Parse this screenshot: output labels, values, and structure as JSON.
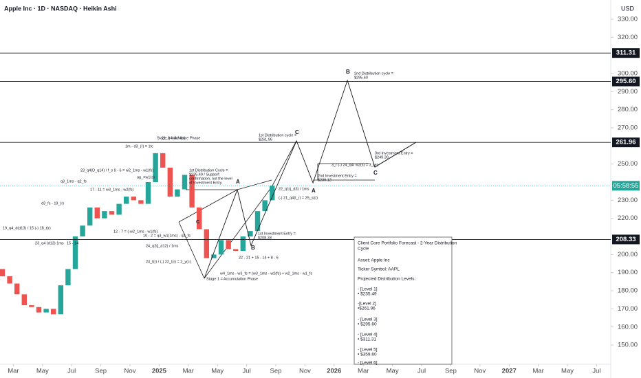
{
  "chart_data": {
    "type": "candlestick",
    "title": "Apple Inc · 1D · NASDAQ · Heikin Ashi",
    "currency": "USD",
    "colors": {
      "up": "#26a69a",
      "down": "#ef5350",
      "projection": "#1a1a1a",
      "level": "#1a1a1a"
    },
    "xlim": [
      1.085,
      42.97
    ],
    "ylim": [
      139.4,
      340.6
    ],
    "xticks": [
      {
        "value": 2,
        "label": "Mar"
      },
      {
        "value": 4,
        "label": "May"
      },
      {
        "value": 6,
        "label": "Jul"
      },
      {
        "value": 8,
        "label": "Sep"
      },
      {
        "value": 10,
        "label": "Nov"
      },
      {
        "value": 12,
        "label": "2025"
      },
      {
        "value": 14,
        "label": "Mar"
      },
      {
        "value": 16,
        "label": "May"
      },
      {
        "value": 18,
        "label": "Jul"
      },
      {
        "value": 20,
        "label": "Sep"
      },
      {
        "value": 22,
        "label": "Nov"
      },
      {
        "value": 24,
        "label": "2026"
      },
      {
        "value": 26,
        "label": "Mar"
      },
      {
        "value": 28,
        "label": "May"
      },
      {
        "value": 30,
        "label": "Jul"
      },
      {
        "value": 32,
        "label": "Sep"
      },
      {
        "value": 34,
        "label": "Nov"
      },
      {
        "value": 36,
        "label": "2027"
      },
      {
        "value": 38,
        "label": "Mar"
      },
      {
        "value": 40,
        "label": "May"
      },
      {
        "value": 42,
        "label": "Jul"
      }
    ],
    "yticks": [
      {
        "value": 330,
        "label": "330.00"
      },
      {
        "value": 320,
        "label": "320.00"
      },
      {
        "value": 300,
        "label": "300.00"
      },
      {
        "value": 290,
        "label": "290.00"
      },
      {
        "value": 280,
        "label": "280.00"
      },
      {
        "value": 270,
        "label": "270.00"
      },
      {
        "value": 250,
        "label": "250.00"
      },
      {
        "value": 230,
        "label": "230.00"
      },
      {
        "value": 220,
        "label": "220.00"
      },
      {
        "value": 200,
        "label": "200.00"
      },
      {
        "value": 190,
        "label": "190.00"
      },
      {
        "value": 180,
        "label": "180.00"
      },
      {
        "value": 170,
        "label": "170.00"
      },
      {
        "value": 160,
        "label": "160.00"
      },
      {
        "value": 150,
        "label": "150.00"
      }
    ],
    "x": [
      1.25,
      1.75,
      2.25,
      2.75,
      3.25,
      3.75,
      4.25,
      4.75,
      5.25,
      5.75,
      6.25,
      6.75,
      7.25,
      7.75,
      8.25,
      8.75,
      9.25,
      9.75,
      10.25,
      10.75,
      11.25,
      11.75,
      12.25,
      12.75,
      13.25,
      13.75,
      14.25,
      14.75,
      15.25,
      15.75,
      16.25,
      16.75,
      17.25,
      17.75,
      18.25,
      18.75,
      19.25,
      19.75
    ],
    "open": [
      192,
      188,
      184,
      178,
      172,
      171,
      168,
      170,
      167,
      183,
      192,
      210,
      216,
      226,
      220,
      224,
      222,
      228,
      232,
      230,
      228,
      240,
      256,
      248,
      232,
      236,
      244,
      226,
      214,
      198,
      200,
      208,
      203,
      202,
      210,
      213,
      224,
      230
    ],
    "close": [
      188,
      184,
      178,
      172,
      171,
      168,
      170,
      167,
      183,
      192,
      210,
      216,
      226,
      220,
      224,
      222,
      228,
      232,
      230,
      228,
      240,
      256,
      248,
      232,
      236,
      244,
      226,
      214,
      198,
      200,
      208,
      203,
      202,
      210,
      213,
      224,
      230,
      238
    ],
    "levels": [
      311.31,
      {
        "value": 295.6,
        "label": "295.60"
      },
      261.96,
      208.33
    ],
    "countdown": "05:58:55",
    "projection": {
      "x": [
        15.09,
        17.36,
        18.3,
        21.42,
        22.55,
        24.91,
        26.79,
        29.62
      ],
      "values": [
        186.8,
        235.8,
        205.0,
        262.8,
        239.6,
        296.2,
        248.3,
        262.0
      ]
    },
    "annotations": [
      "Stage 2 = Advance Phase",
      "Stage 1 = Accumulation Phase",
      "1st Distribution cycle =",
      "$261.96",
      "2nd Distribution cycle =",
      "$295.60",
      "3rd  Investment Entry =",
      "$249.39",
      "2nd  Investment Entry =",
      "$239.12",
      "1st Investment Entry =",
      "$208.33",
      "1st Distribution Cycle =",
      "$235.49 / Support",
      "confirmation, not the level",
      "of Investment Entry.",
      "A",
      "B",
      "C",
      "A",
      "B",
      "C",
      "C",
      "1m - d3_(r) = 1tc",
      "21_q4(d) / f(s)",
      "ag_=w1(s)",
      "23_q4(D_q14) / f_s  9 - 6 = w2_1ms - w1(fs)",
      "17 - 11 = w3_1ms - w2(fs)",
      "12 - 7 = (-w2_1ms - w1(fs)",
      "10 - 2 = q3_w1(1ms) - q3_fs",
      "24_q2(j_d12) / 1ms",
      "23_t(r) / (-) 22_t(r) = 2_y(c)",
      "22 - 21 + 15 - 14 + 8 - 6",
      "w4_1ms - w3_fs = (w3_1ms - w2(fs) + w2_1ms - w1_fs",
      "22_q1(j_d3) / 1ms",
      "(-) 21_q4(t_r) = 25_s(c)",
      "3_r (-) 24_q4/ w2(s) = 3_(e)",
      "19_q4_d(d13) / 15 (-) 18_t(r)",
      "23_q4  (d13) 1ms",
      "15 - 14",
      "d3_fs - 19_(r)",
      "q3_1ms - q2_fs"
    ],
    "note_box": {
      "lines": [
        "Client Core Portfolio Forecast - 2-Year Distribution",
        "Cycle",
        "Asset:  Apple Inc",
        "Ticker Symbol: AAPL",
        "Projected Distribution Levels:",
        "- [Level 1]",
        "• $235.49",
        "-[Level 2]",
        "•$261.96",
        "- [Level 3]",
        "• $295.60",
        "- [Level 4]",
        "• $311.31",
        "- [Level 5]",
        "• $359.60",
        "- [Level 6]"
      ]
    }
  }
}
